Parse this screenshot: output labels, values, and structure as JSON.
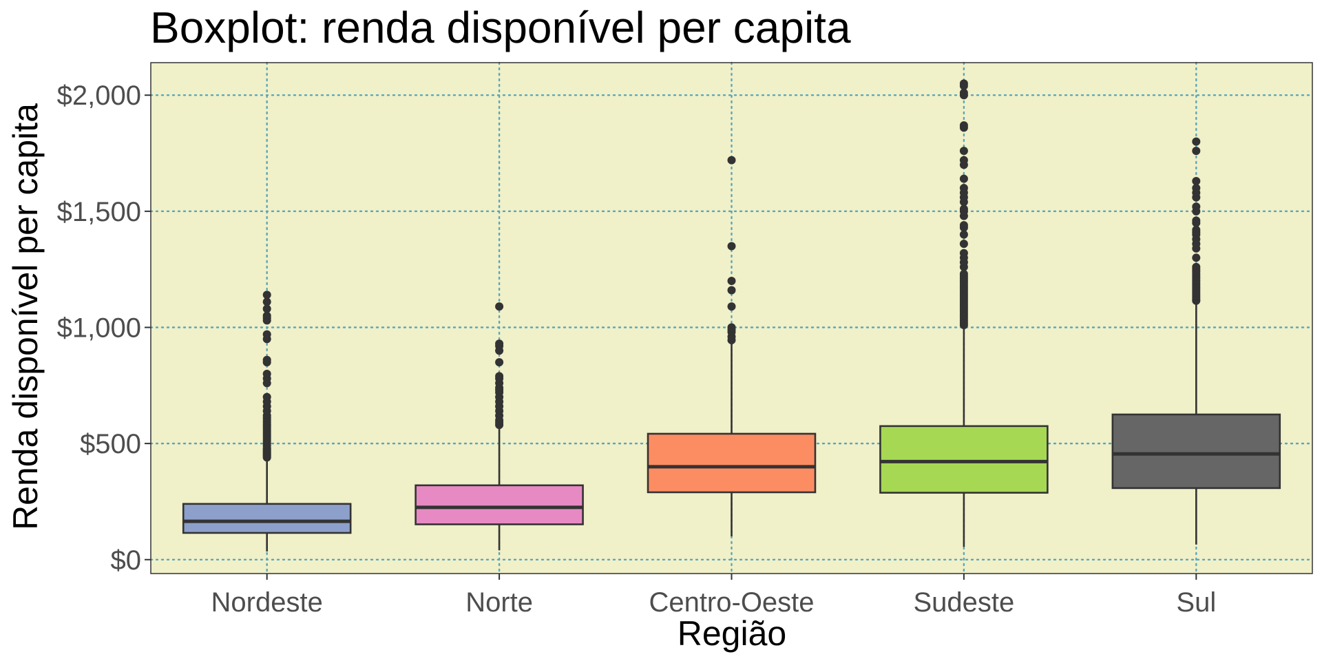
{
  "chart_data": {
    "type": "boxplot",
    "title": "Boxplot: renda disponível per capita",
    "xlabel": "Região",
    "ylabel": "Renda disponível per capita",
    "ylim": [
      -60,
      2140
    ],
    "y_ticks": [
      0,
      500,
      1000,
      1500,
      2000
    ],
    "y_tick_labels": [
      "$0",
      "$500",
      "$1,000",
      "$1,500",
      "$2,000"
    ],
    "grid": true,
    "panel_background": "#f0f0c9",
    "grid_color": "#58a6b8",
    "categories": [
      "Nordeste",
      "Norte",
      "Centro-Oeste",
      "Sudeste",
      "Sul"
    ],
    "boxes": [
      {
        "category": "Nordeste",
        "fill": "#8da0cb",
        "whisker_low": 35,
        "q1": 115,
        "median": 165,
        "q3": 240,
        "whisker_high": 430,
        "outliers": [
          440,
          445,
          450,
          455,
          460,
          465,
          470,
          475,
          480,
          490,
          500,
          510,
          520,
          530,
          540,
          550,
          560,
          570,
          580,
          590,
          600,
          610,
          620,
          640,
          660,
          680,
          700,
          760,
          780,
          800,
          850,
          860,
          950,
          970,
          1030,
          1040,
          1050,
          1080,
          1110,
          1140
        ]
      },
      {
        "category": "Norte",
        "fill": "#e78ac3",
        "whisker_low": 40,
        "q1": 152,
        "median": 225,
        "q3": 320,
        "whisker_high": 570,
        "outliers": [
          580,
          590,
          600,
          620,
          640,
          660,
          680,
          700,
          720,
          730,
          740,
          760,
          780,
          790,
          850,
          900,
          920,
          930,
          1090
        ]
      },
      {
        "category": "Centro-Oeste",
        "fill": "#fc8d62",
        "whisker_low": 100,
        "q1": 290,
        "median": 400,
        "q3": 542,
        "whisker_high": 935,
        "outliers": [
          945,
          960,
          980,
          990,
          1000,
          1090,
          1160,
          1200,
          1350,
          1720
        ]
      },
      {
        "category": "Sudeste",
        "fill": "#a6d854",
        "whisker_low": 55,
        "q1": 288,
        "median": 422,
        "q3": 575,
        "whisker_high": 1000,
        "outliers": [
          1010,
          1020,
          1030,
          1040,
          1050,
          1060,
          1070,
          1080,
          1090,
          1100,
          1110,
          1120,
          1130,
          1140,
          1150,
          1160,
          1170,
          1180,
          1190,
          1200,
          1210,
          1220,
          1230,
          1260,
          1280,
          1300,
          1320,
          1360,
          1400,
          1430,
          1440,
          1480,
          1500,
          1510,
          1540,
          1560,
          1580,
          1600,
          1640,
          1700,
          1720,
          1760,
          1860,
          1870,
          2000,
          2010,
          2040,
          2050
        ]
      },
      {
        "category": "Sul",
        "fill": "#666666",
        "whisker_low": 65,
        "q1": 308,
        "median": 455,
        "q3": 625,
        "whisker_high": 1110,
        "outliers": [
          1115,
          1120,
          1130,
          1140,
          1150,
          1160,
          1170,
          1180,
          1190,
          1200,
          1210,
          1220,
          1230,
          1240,
          1250,
          1260,
          1300,
          1340,
          1360,
          1380,
          1400,
          1410,
          1420,
          1450,
          1460,
          1500,
          1520,
          1560,
          1580,
          1600,
          1630,
          1760,
          1800
        ]
      }
    ]
  }
}
